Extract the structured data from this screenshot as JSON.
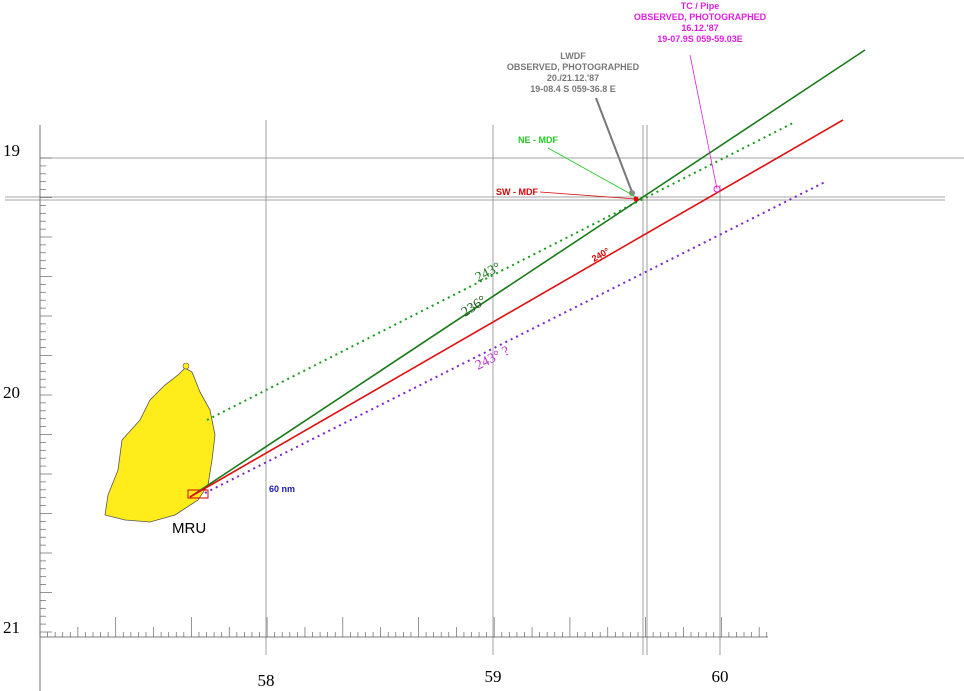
{
  "latitude_labels": [
    "19",
    "20",
    "21"
  ],
  "longitude_labels": [
    "58",
    "59",
    "60"
  ],
  "annotations": {
    "tc_pipe": [
      "TC / Pipe",
      "OBSERVED, PHOTOGRAPHED",
      "16.12.'87",
      "19-07.9S 059-59.03E"
    ],
    "lwdf": [
      "LWDF",
      "OBSERVED, PHOTOGRAPHED",
      "20./21.12.'87",
      "19-08.4 S 059-36.8 E"
    ],
    "ne_mdf": "NE - MDF",
    "sw_mdf": "SW - MDF",
    "bearing_243": "243°",
    "bearing_236": "236°",
    "bearing_240": "240°",
    "bearing_243_query": "243° ?",
    "distance": "60 nm",
    "location": "MRU"
  }
}
